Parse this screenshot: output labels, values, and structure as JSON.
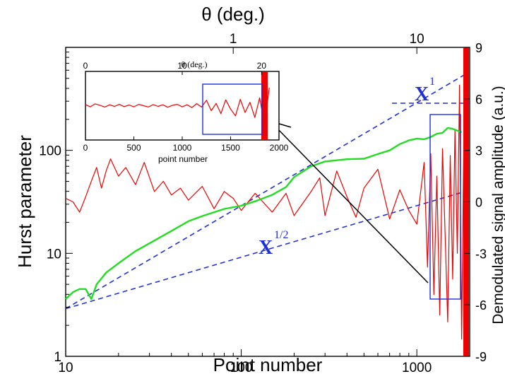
{
  "chart_data": [
    {
      "type": "line",
      "role": "main",
      "xlabel": "Point number",
      "ylabel": "Hurst parameter",
      "top_xlabel": "θ (deg.)",
      "right_ylabel": "Demodulated signal amplitude (a.u.)",
      "x_scale": "log",
      "y_scale": "log",
      "xlim": [
        10,
        2000
      ],
      "ylim": [
        1,
        1000
      ],
      "right_ylim": [
        -9,
        9
      ],
      "x_ticks": [
        10,
        100,
        1000
      ],
      "x_tick_labels": [
        "10",
        "100",
        "1000"
      ],
      "y_ticks": [
        1,
        10,
        100
      ],
      "y_tick_labels": [
        "1",
        "10",
        "100"
      ],
      "top_ticks": [
        1,
        10
      ],
      "top_tick_labels": [
        "1",
        "10"
      ],
      "top_tick_positions_point_number": [
        90,
        1000
      ],
      "right_ticks": [
        9,
        6,
        3,
        0,
        -3,
        -6,
        -9
      ],
      "right_tick_labels": [
        "9",
        "6",
        "3",
        "0",
        "-3",
        "-6",
        "-9"
      ],
      "grid": false,
      "annotations": [
        {
          "text": "X",
          "superscript": "1"
        },
        {
          "text": "X",
          "superscript": "1/2"
        }
      ],
      "colors": {
        "hurst": "#22dd22",
        "signal": "#ee0000",
        "fit": "#1f2fdd",
        "arrow": "#000000"
      },
      "series": [
        {
          "label": "hurst-parameter-curve",
          "axis": "left",
          "x": [
            10,
            11,
            12,
            13,
            14,
            15,
            17,
            20,
            25,
            30,
            40,
            50,
            60,
            80,
            100,
            120,
            150,
            180,
            200,
            250,
            300,
            400,
            500,
            600,
            700,
            800,
            900,
            1000,
            1100,
            1200,
            1300,
            1400,
            1500,
            1600,
            1700,
            1800
          ],
          "values": [
            3.6,
            4.2,
            4.5,
            4.5,
            3.6,
            5.0,
            6.5,
            8.0,
            10.5,
            12.5,
            16.5,
            20.5,
            23,
            27,
            29,
            32,
            37,
            44,
            55,
            70,
            78,
            82,
            83,
            92,
            100,
            115,
            125,
            130,
            128,
            135,
            145,
            148,
            165,
            162,
            155,
            150
          ]
        },
        {
          "label": "fit-x-power-1",
          "axis": "left",
          "x": [
            10,
            1900
          ],
          "values": [
            2.9,
            551
          ]
        },
        {
          "label": "fit-x-power-half",
          "axis": "left",
          "x": [
            10,
            1900
          ],
          "values": [
            2.9,
            40
          ]
        },
        {
          "label": "demodulated-signal",
          "axis": "right",
          "x": [
            10,
            11,
            12,
            13,
            14,
            15,
            16,
            17,
            18,
            20,
            22,
            25,
            28,
            32,
            36,
            40,
            45,
            50,
            60,
            70,
            80,
            90,
            100,
            120,
            150,
            180,
            200,
            250,
            280,
            300,
            350,
            400,
            450,
            500,
            600,
            700,
            800,
            900,
            1000,
            1100,
            1150,
            1200,
            1250,
            1300,
            1350,
            1400,
            1450,
            1500,
            1550,
            1600,
            1650,
            1700,
            1750,
            1800,
            1850,
            1900
          ],
          "values": [
            0.2,
            0.0,
            -0.6,
            0.3,
            1.2,
            2.0,
            0.8,
            1.8,
            2.5,
            1.5,
            2.0,
            1.0,
            2.3,
            0.6,
            1.2,
            0.4,
            0.8,
            0.1,
            0.9,
            -0.4,
            0.6,
            0.2,
            -0.5,
            0.5,
            -0.6,
            0.5,
            -0.8,
            0.6,
            1.4,
            -0.8,
            1.8,
            0.3,
            -0.9,
            0.8,
            1.9,
            -1.0,
            0.7,
            -0.5,
            -1.3,
            2.3,
            -3.8,
            2.8,
            -5.4,
            1.5,
            -6.6,
            3.1,
            -2.0,
            -7.0,
            2.7,
            -4.5,
            4.2,
            -3.0,
            6.8,
            -8.0,
            3.5,
            -2.5
          ]
        }
      ]
    },
    {
      "type": "line",
      "role": "inset",
      "xlabel": "point number",
      "top_xlabel": "θ (deg.)",
      "xlim": [
        0,
        2000
      ],
      "x_ticks": [
        0,
        500,
        1000,
        1500,
        2000
      ],
      "x_tick_labels": [
        "0",
        "500",
        "1000",
        "1500",
        "2000"
      ],
      "top_ticks": [
        0,
        10,
        20
      ],
      "top_tick_labels": [
        "0",
        "10",
        "20"
      ],
      "top_tick_positions_point_number": [
        0,
        1000,
        1820
      ],
      "ylim": [
        -9,
        9
      ],
      "highlight_box_x": [
        1200,
        1820
      ],
      "series": [
        {
          "label": "inset-signal",
          "x": [
            0,
            50,
            100,
            150,
            200,
            250,
            300,
            350,
            400,
            450,
            500,
            550,
            600,
            650,
            700,
            750,
            800,
            850,
            900,
            950,
            1000,
            1050,
            1100,
            1150,
            1200,
            1250,
            1300,
            1350,
            1400,
            1450,
            1500,
            1550,
            1600,
            1650,
            1700,
            1750,
            1800,
            1850,
            1900
          ],
          "values": [
            0.5,
            -0.5,
            0.8,
            0.2,
            -0.6,
            0.4,
            -0.3,
            0.6,
            -0.4,
            0.3,
            -0.5,
            0.6,
            0.0,
            -0.6,
            0.5,
            -0.3,
            0.4,
            -0.7,
            0.2,
            0.6,
            -0.5,
            0.4,
            -0.8,
            0.9,
            -0.6,
            2.4,
            -2.2,
            1.0,
            -3.5,
            2.6,
            -1.5,
            -4.5,
            2.8,
            -3.0,
            1.5,
            -5.2,
            3.5,
            -8.5,
            8.0
          ]
        }
      ]
    }
  ]
}
